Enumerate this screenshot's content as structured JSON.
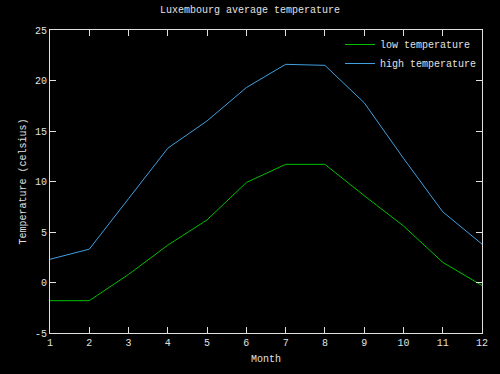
{
  "chart_data": {
    "type": "line",
    "title": "Luxembourg average temperature",
    "x_label": "Month",
    "y_label": "Temperature (celsius)",
    "x": [
      1,
      2,
      3,
      4,
      5,
      6,
      7,
      8,
      9,
      10,
      11,
      12
    ],
    "series": [
      {
        "name": "low temperature",
        "color": "#00c000",
        "values": [
          -1.8,
          -1.8,
          0.8,
          3.7,
          6.2,
          9.9,
          11.7,
          11.7,
          8.6,
          5.6,
          2.0,
          -0.3
        ]
      },
      {
        "name": "high temperature",
        "color": "#40a0e0",
        "values": [
          2.3,
          3.3,
          8.3,
          13.3,
          16.0,
          19.3,
          21.6,
          21.5,
          17.8,
          12.3,
          7.0,
          3.8
        ]
      }
    ],
    "xlim": [
      1,
      12
    ],
    "xticks": [
      1,
      2,
      3,
      4,
      5,
      6,
      7,
      8,
      9,
      10,
      11,
      12
    ],
    "ylim": [
      -5,
      25
    ],
    "yticks": [
      -5,
      0,
      5,
      10,
      15,
      20,
      25
    ],
    "grid": false,
    "legend": "top-right"
  }
}
